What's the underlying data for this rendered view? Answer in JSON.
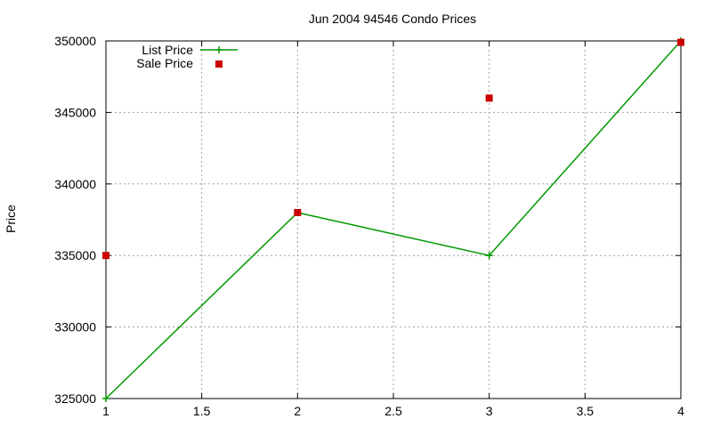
{
  "chart_data": {
    "type": "line",
    "title": "Jun 2004 94546 Condo Prices",
    "xlabel": "",
    "ylabel": "Price",
    "xlim": [
      1,
      4
    ],
    "ylim": [
      325000,
      350000
    ],
    "xticks": [
      "1",
      "1.5",
      "2",
      "2.5",
      "3",
      "3.5",
      "4"
    ],
    "xtick_values": [
      1,
      1.5,
      2,
      2.5,
      3,
      3.5,
      4
    ],
    "yticks": [
      "325000",
      "330000",
      "335000",
      "340000",
      "345000",
      "350000"
    ],
    "ytick_values": [
      325000,
      330000,
      335000,
      340000,
      345000,
      350000
    ],
    "grid": true,
    "legend_position": "top-left",
    "series": [
      {
        "name": "List Price",
        "style": "line-with-plus-markers",
        "color": "#009900",
        "x": [
          1,
          2,
          3,
          4
        ],
        "y": [
          325000,
          338000,
          335000,
          350000
        ]
      },
      {
        "name": "Sale Price",
        "style": "square-markers",
        "color": "#cc0000",
        "x": [
          1,
          2,
          3,
          4
        ],
        "y": [
          335000,
          338000,
          346000,
          349900
        ]
      }
    ]
  }
}
